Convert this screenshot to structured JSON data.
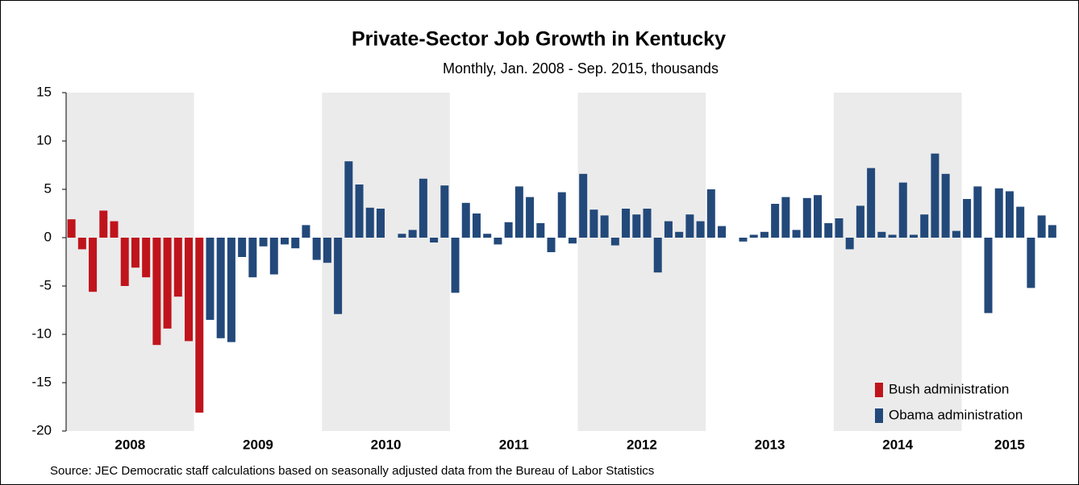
{
  "chart_data": {
    "type": "bar",
    "title": "Private-Sector Job Growth in Kentucky",
    "subtitle": "Monthly, Jan. 2008 - Sep. 2015, thousands",
    "source": "Source: JEC Democratic staff calculations based on seasonally adjusted data from the Bureau of Labor Statistics",
    "year_labels": [
      "2008",
      "2009",
      "2010",
      "2011",
      "2012",
      "2013",
      "2014",
      "2015"
    ],
    "ylim": [
      -20,
      15
    ],
    "yticks": [
      -20,
      -15,
      -10,
      -5,
      0,
      5,
      10,
      15
    ],
    "legend": "bottom-right",
    "series": [
      {
        "name": "Bush administration",
        "color": "#c0141c",
        "values": [
          1.9,
          -1.2,
          -5.6,
          2.8,
          1.7,
          -5.0,
          -3.1,
          -4.1,
          -11.1,
          -9.4,
          -6.1,
          -10.7,
          -18.1,
          null,
          null,
          null,
          null,
          null,
          null,
          null,
          null,
          null,
          null,
          null,
          null,
          null,
          null,
          null,
          null,
          null,
          null,
          null,
          null,
          null,
          null,
          null,
          null,
          null,
          null,
          null,
          null,
          null,
          null,
          null,
          null,
          null,
          null,
          null,
          null,
          null,
          null,
          null,
          null,
          null,
          null,
          null,
          null,
          null,
          null,
          null,
          null,
          null,
          null,
          null,
          null,
          null,
          null,
          null,
          null,
          null,
          null,
          null,
          null,
          null,
          null,
          null,
          null,
          null,
          null,
          null,
          null,
          null,
          null,
          null,
          null,
          null,
          null,
          null,
          null,
          null,
          null,
          null,
          null
        ]
      },
      {
        "name": "Obama administration",
        "color": "#23497a",
        "values": [
          null,
          null,
          null,
          null,
          null,
          null,
          null,
          null,
          null,
          null,
          null,
          null,
          null,
          -8.5,
          -10.4,
          -10.8,
          -2.0,
          -4.1,
          -0.9,
          -3.8,
          -0.7,
          -1.1,
          1.3,
          -2.3,
          -2.6,
          -7.9,
          7.9,
          5.5,
          3.1,
          3.0,
          0,
          0.4,
          0.8,
          6.1,
          -0.5,
          5.4,
          -5.7,
          3.6,
          2.5,
          0.4,
          -0.7,
          1.6,
          5.3,
          4.2,
          1.5,
          -1.5,
          4.7,
          -0.6,
          6.6,
          2.9,
          2.3,
          -0.8,
          3.0,
          2.4,
          3.0,
          -3.6,
          1.7,
          0.6,
          2.4,
          1.7,
          5.0,
          1.2,
          0.0,
          -0.4,
          0.3,
          0.6,
          3.5,
          4.2,
          0.8,
          4.1,
          4.4,
          1.5,
          2.0,
          -1.2,
          3.3,
          7.2,
          0.6,
          0.3,
          5.7,
          0.3,
          2.4,
          8.7,
          6.6,
          0.7,
          4.0,
          5.3,
          -7.8,
          5.1,
          4.8,
          3.2,
          -5.2,
          2.3,
          1.3
        ]
      }
    ]
  }
}
